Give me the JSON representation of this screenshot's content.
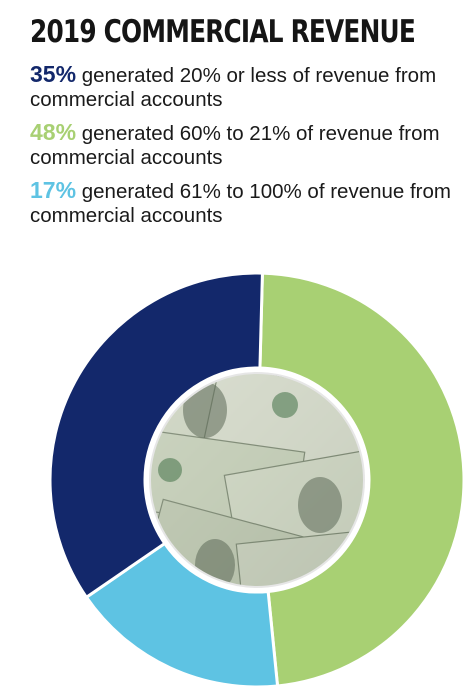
{
  "chart_data": {
    "type": "pie",
    "title": "2019 COMMERCIAL REVENUE",
    "slices": [
      {
        "label": "generated 20% or less of revenue from commercial accounts",
        "pct_label": "35%",
        "value": 35,
        "color": "#13286b"
      },
      {
        "label": "generated 60% to 21% of revenue from commercial accounts",
        "pct_label": "48%",
        "value": 48,
        "color": "#a8d073"
      },
      {
        "label": "generated 61% to 100% of revenue from commercial accounts",
        "pct_label": "17%",
        "value": 17,
        "color": "#5ec3e3"
      }
    ],
    "center_image": "money-photo"
  }
}
